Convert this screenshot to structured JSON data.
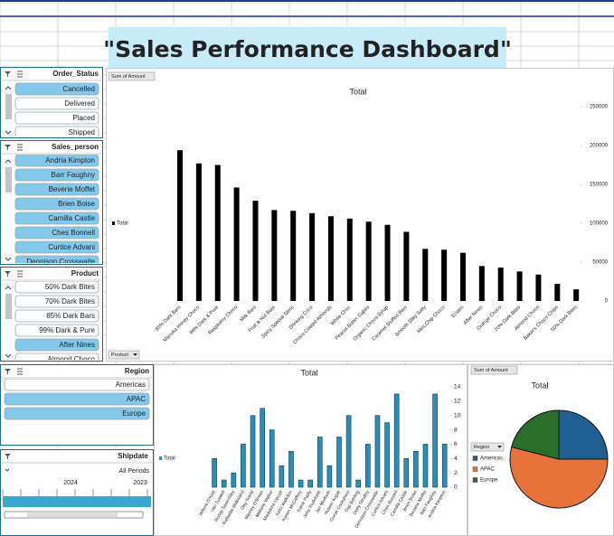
{
  "title": "\"Sales Performance Dashboard\"",
  "slicers": [
    {
      "title": "Order_Status",
      "items": [
        {
          "label": "Cancelled",
          "selected": true
        },
        {
          "label": "Delivered",
          "selected": false
        },
        {
          "label": "Placed",
          "selected": false
        },
        {
          "label": "Shipped",
          "selected": false
        }
      ]
    },
    {
      "title": "Sales_person",
      "items": [
        {
          "label": "Andria Kimpton",
          "selected": true
        },
        {
          "label": "Barr Faughny",
          "selected": true
        },
        {
          "label": "Beverie Moffet",
          "selected": true
        },
        {
          "label": "Brien Boise",
          "selected": true
        },
        {
          "label": "Camilla Castle",
          "selected": true
        },
        {
          "label": "Ches Bonnell",
          "selected": true
        },
        {
          "label": "Curtice Advani",
          "selected": true
        },
        {
          "label": "Dennison Crosswaite",
          "selected": true
        }
      ]
    },
    {
      "title": "Product",
      "items": [
        {
          "label": "50% Dark Bites",
          "selected": false
        },
        {
          "label": "70% Dark Bites",
          "selected": false
        },
        {
          "label": "85% Dark Bars",
          "selected": false
        },
        {
          "label": "99% Dark & Pure",
          "selected": false
        },
        {
          "label": "After Nines",
          "selected": true
        },
        {
          "label": "Almond Choco",
          "selected": false
        }
      ]
    },
    {
      "title": "Region",
      "items": [
        {
          "label": "Americas",
          "selected": false
        },
        {
          "label": "APAC",
          "selected": true
        },
        {
          "label": "Europe",
          "selected": true
        }
      ]
    }
  ],
  "shipdate": {
    "title": "Shipdate",
    "period": "All Periods",
    "years": [
      "2024",
      "2023"
    ]
  },
  "chart_data": [
    {
      "type": "bar",
      "title": "Total",
      "field_buttons": [
        "Sum of Amount",
        "Product"
      ],
      "categories": [
        "85% Dark Bars",
        "Manuka Honey Choco",
        "99% Dark & Pure",
        "Raspberry Choco",
        "Milk Bars",
        "Fruit & Nut Bars",
        "Spicy Special Slims",
        "Drinking Coco",
        "Choco Coated Almonds",
        "White Choc",
        "Peanut Butter Cubes",
        "Organic Choco Syrup",
        "Caramel Stuffed Bars",
        "Smooth Sliky Salty",
        "Mint Chip Choco",
        "Eclairs",
        "After Nines",
        "Orange Choco",
        "70% Dark Bites",
        "Almond Choco",
        "Baker's Choco Chips",
        "50% Dark Bites"
      ],
      "series": [
        {
          "name": "Total",
          "color": "#000000",
          "values": [
            194000,
            177000,
            175000,
            146000,
            129000,
            117000,
            116000,
            113000,
            109000,
            106000,
            102000,
            98000,
            89000,
            67000,
            66000,
            62000,
            45000,
            43000,
            38000,
            34000,
            22000,
            15000
          ]
        }
      ],
      "ylim": [
        0,
        250000
      ],
      "yticks": [
        0,
        50000,
        100000,
        150000,
        200000,
        250000
      ]
    },
    {
      "type": "bar",
      "title": "Total",
      "categories": [
        "Wilone O'Kielt",
        "Van Tuxwell",
        "Roddy Speechley",
        "Rafaelita Blaksland",
        "Oby Sorrel",
        "Marney O'Breen",
        "Mallorie Waber",
        "Madelene Upcott",
        "Kelci Walkden",
        "Karlen McCaffrey",
        "Kaine Padly",
        "Jehu Rudeforth",
        "Jan Morforth",
        "Husein Augar",
        "Gunar Cockshoot",
        "Gigi Bohling",
        "Dotty Strutley",
        "Dennison Crosswaite",
        "Curtice Advani",
        "Ches Bonnell",
        "Camilla Castle",
        "Brien Boise",
        "Beverie Moffet",
        "Barr Faughny",
        "Andria Kimpton"
      ],
      "series": [
        {
          "name": "Total",
          "color": "#2a8fb8",
          "values": [
            4,
            1,
            2,
            6,
            10,
            11,
            8,
            3,
            5,
            1,
            1,
            7,
            3,
            7,
            10,
            1,
            6,
            10,
            9,
            13,
            4,
            5,
            6,
            13,
            6
          ]
        }
      ],
      "ylim": [
        0,
        14
      ],
      "yticks": [
        0,
        2,
        4,
        6,
        8,
        10,
        12,
        14
      ]
    },
    {
      "type": "pie",
      "title": "Total",
      "field_buttons": [
        "Sum of Amount",
        "Region"
      ],
      "categories": [
        "Americas",
        "APAC",
        "Europe"
      ],
      "values": [
        25,
        54,
        21
      ],
      "colors": [
        "#1f5f8f",
        "#e8733a",
        "#2a6e2a"
      ]
    }
  ]
}
